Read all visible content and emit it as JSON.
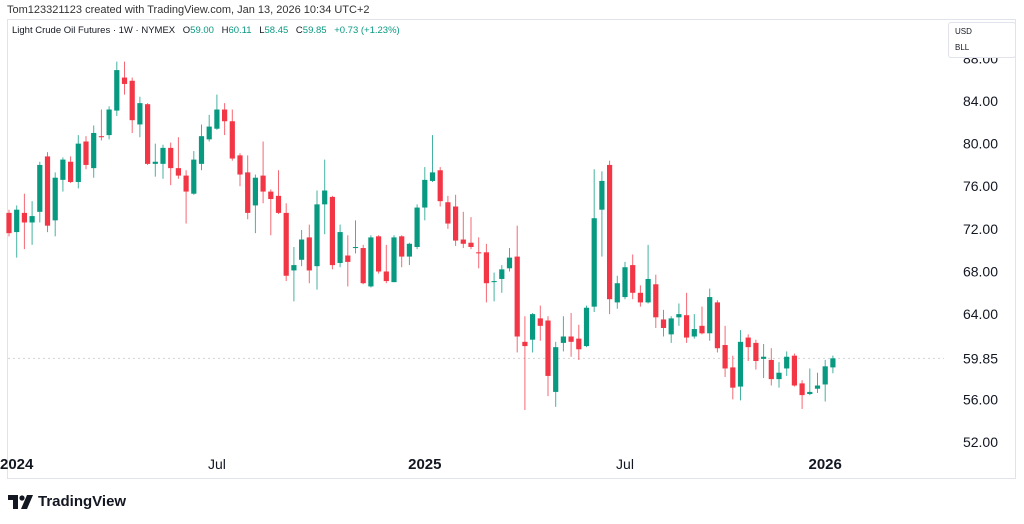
{
  "credit": "Tom123321123 created with TradingView.com, Jan 13, 2026 10:34 UTC+2",
  "legend": {
    "symbol": "Light Crude Oil Futures · 1W · NYMEX",
    "o_label": "O",
    "o": "59.00",
    "h_label": "H",
    "h": "60.11",
    "l_label": "L",
    "l": "58.45",
    "c_label": "C",
    "c": "59.85",
    "change": "+0.73 (+1.23%)"
  },
  "unit_box": {
    "currency": "USD",
    "unit": "BLL"
  },
  "logo_text": "TradingView",
  "colors": {
    "up": "#089981",
    "down": "#F23645",
    "text": "#131722"
  },
  "chart_data": {
    "type": "candlestick",
    "title": "Light Crude Oil Futures · 1W · NYMEX",
    "interval": "1W",
    "y_ticks": [
      "88.00",
      "84.00",
      "80.00",
      "76.00",
      "72.00",
      "68.00",
      "64.00",
      "56.00",
      "52.00"
    ],
    "last_price_label": "59.85",
    "ylim": [
      50.5,
      89
    ],
    "grid": false,
    "x_ticks": [
      {
        "label": "2024",
        "date": "2024-01-01",
        "bold": true
      },
      {
        "label": "Jul",
        "date": "2024-07-01",
        "bold": false
      },
      {
        "label": "2025",
        "date": "2025-01-06",
        "bold": true
      },
      {
        "label": "Jul",
        "date": "2025-07-07",
        "bold": false
      },
      {
        "label": "2026",
        "date": "2026-01-05",
        "bold": true
      }
    ],
    "columns": [
      "date",
      "open",
      "high",
      "low",
      "close"
    ],
    "candles": [
      [
        "2023-12-25",
        73.5,
        73.8,
        71.3,
        71.6
      ],
      [
        "2024-01-01",
        71.7,
        74.2,
        69.3,
        73.8
      ],
      [
        "2024-01-08",
        73.5,
        75.3,
        70.1,
        72.6
      ],
      [
        "2024-01-15",
        72.6,
        74.6,
        70.5,
        73.2
      ],
      [
        "2024-01-22",
        73.6,
        78.3,
        72.6,
        78.0
      ],
      [
        "2024-01-29",
        78.8,
        79.2,
        71.7,
        72.3
      ],
      [
        "2024-02-05",
        72.8,
        77.3,
        71.3,
        76.8
      ],
      [
        "2024-02-12",
        76.6,
        78.7,
        75.5,
        78.5
      ],
      [
        "2024-02-19",
        78.3,
        78.8,
        76.3,
        76.4
      ],
      [
        "2024-02-26",
        76.4,
        80.8,
        75.8,
        80.0
      ],
      [
        "2024-03-04",
        80.2,
        80.7,
        77.6,
        78.0
      ],
      [
        "2024-03-11",
        77.7,
        81.7,
        76.8,
        81.0
      ],
      [
        "2024-03-18",
        80.7,
        83.2,
        80.3,
        80.6
      ],
      [
        "2024-03-25",
        80.8,
        83.5,
        80.4,
        83.2
      ],
      [
        "2024-04-01",
        83.1,
        87.7,
        82.6,
        86.9
      ],
      [
        "2024-04-08",
        86.2,
        87.7,
        84.6,
        85.6
      ],
      [
        "2024-04-15",
        85.9,
        86.2,
        81.0,
        82.2
      ],
      [
        "2024-04-22",
        81.8,
        84.4,
        80.6,
        83.8
      ],
      [
        "2024-04-29",
        83.7,
        83.8,
        78.0,
        78.1
      ],
      [
        "2024-05-06",
        78.1,
        80.0,
        76.9,
        78.3
      ],
      [
        "2024-05-13",
        78.1,
        79.9,
        76.7,
        79.6
      ],
      [
        "2024-05-20",
        79.6,
        80.1,
        76.1,
        77.7
      ],
      [
        "2024-05-27",
        77.7,
        80.6,
        76.7,
        77.0
      ],
      [
        "2024-06-03",
        77.0,
        77.5,
        72.5,
        75.5
      ],
      [
        "2024-06-10",
        75.3,
        79.3,
        75.2,
        78.5
      ],
      [
        "2024-06-17",
        78.1,
        81.8,
        77.5,
        80.7
      ],
      [
        "2024-06-24",
        80.4,
        82.7,
        80.2,
        81.6
      ],
      [
        "2024-07-01",
        81.4,
        84.6,
        81.3,
        83.2
      ],
      [
        "2024-07-08",
        83.2,
        83.8,
        80.8,
        82.1
      ],
      [
        "2024-07-15",
        82.1,
        83.2,
        78.4,
        78.6
      ],
      [
        "2024-07-22",
        78.9,
        79.1,
        76.0,
        77.1
      ],
      [
        "2024-07-29",
        77.3,
        78.9,
        72.9,
        73.5
      ],
      [
        "2024-08-05",
        74.2,
        77.1,
        71.6,
        76.8
      ],
      [
        "2024-08-12",
        77.0,
        80.2,
        74.4,
        75.5
      ],
      [
        "2024-08-19",
        75.5,
        75.7,
        71.4,
        74.8
      ],
      [
        "2024-08-26",
        75.1,
        77.5,
        73.4,
        73.5
      ],
      [
        "2024-09-02",
        73.5,
        74.4,
        67.1,
        67.6
      ],
      [
        "2024-09-09",
        68.1,
        70.3,
        65.2,
        68.6
      ],
      [
        "2024-09-16",
        69.1,
        71.9,
        68.5,
        71.0
      ],
      [
        "2024-09-23",
        71.2,
        72.4,
        66.9,
        68.1
      ],
      [
        "2024-09-30",
        68.5,
        75.6,
        66.3,
        74.3
      ],
      [
        "2024-10-07",
        74.3,
        78.5,
        71.5,
        75.6
      ],
      [
        "2024-10-14",
        75.0,
        75.1,
        68.2,
        68.6
      ],
      [
        "2024-10-21",
        68.8,
        72.4,
        68.4,
        71.7
      ],
      [
        "2024-10-28",
        69.5,
        71.4,
        66.6,
        68.9
      ],
      [
        "2024-11-04",
        70.2,
        72.8,
        69.7,
        70.3
      ],
      [
        "2024-11-11",
        70.2,
        70.5,
        66.8,
        66.9
      ],
      [
        "2024-11-18",
        66.6,
        71.4,
        66.5,
        71.2
      ],
      [
        "2024-11-25",
        71.3,
        71.4,
        67.8,
        68.0
      ],
      [
        "2024-12-02",
        68.0,
        70.5,
        66.9,
        67.1
      ],
      [
        "2024-12-09",
        67.0,
        71.4,
        67.0,
        71.2
      ],
      [
        "2024-12-16",
        71.3,
        71.4,
        68.4,
        69.4
      ],
      [
        "2024-12-23",
        69.4,
        70.7,
        68.6,
        70.6
      ],
      [
        "2024-12-30",
        70.3,
        74.3,
        70.1,
        74.0
      ],
      [
        "2025-01-06",
        74.0,
        77.8,
        72.8,
        76.6
      ],
      [
        "2025-01-13",
        76.5,
        80.8,
        76.4,
        77.3
      ],
      [
        "2025-01-20",
        77.5,
        77.8,
        74.1,
        74.6
      ],
      [
        "2025-01-27",
        74.5,
        75.1,
        72.0,
        72.5
      ],
      [
        "2025-02-03",
        74.1,
        75.2,
        70.4,
        70.9
      ],
      [
        "2025-02-10",
        71.0,
        73.6,
        70.2,
        70.6
      ],
      [
        "2025-02-17",
        70.7,
        73.1,
        70.1,
        70.3
      ],
      [
        "2025-02-24",
        69.8,
        71.2,
        68.3,
        69.7
      ],
      [
        "2025-03-03",
        69.8,
        70.6,
        65.1,
        66.9
      ],
      [
        "2025-03-10",
        67.0,
        67.9,
        65.2,
        67.1
      ],
      [
        "2025-03-17",
        67.3,
        68.6,
        66.0,
        68.2
      ],
      [
        "2025-03-24",
        68.3,
        70.2,
        68.0,
        69.3
      ],
      [
        "2025-03-31",
        69.4,
        72.3,
        60.4,
        61.9
      ],
      [
        "2025-04-07",
        61.4,
        63.8,
        55.0,
        61.0
      ],
      [
        "2025-04-14",
        61.6,
        64.1,
        60.4,
        64.0
      ],
      [
        "2025-04-21",
        63.6,
        64.8,
        61.5,
        62.9
      ],
      [
        "2025-04-28",
        63.4,
        63.8,
        56.3,
        58.2
      ],
      [
        "2025-05-05",
        56.7,
        61.4,
        55.3,
        60.9
      ],
      [
        "2025-05-12",
        61.3,
        63.8,
        60.5,
        61.9
      ],
      [
        "2025-05-19",
        61.9,
        64.1,
        60.0,
        61.4
      ],
      [
        "2025-05-26",
        61.7,
        63.0,
        59.7,
        60.7
      ],
      [
        "2025-06-02",
        61.0,
        64.8,
        60.9,
        64.6
      ],
      [
        "2025-06-09",
        64.7,
        77.6,
        64.2,
        73.0
      ],
      [
        "2025-06-16",
        73.8,
        77.4,
        69.4,
        76.5
      ],
      [
        "2025-06-23",
        78.0,
        78.4,
        64.0,
        65.4
      ],
      [
        "2025-06-30",
        65.1,
        67.6,
        64.5,
        66.9
      ],
      [
        "2025-07-07",
        65.6,
        68.9,
        65.4,
        68.4
      ],
      [
        "2025-07-14",
        68.6,
        69.6,
        65.4,
        66.0
      ],
      [
        "2025-07-21",
        66.0,
        66.7,
        64.7,
        65.1
      ],
      [
        "2025-07-28",
        65.1,
        70.5,
        65.0,
        67.3
      ],
      [
        "2025-08-04",
        66.8,
        67.7,
        62.7,
        63.7
      ],
      [
        "2025-08-11",
        63.5,
        64.4,
        61.9,
        62.7
      ],
      [
        "2025-08-18",
        62.1,
        63.8,
        61.3,
        63.6
      ],
      [
        "2025-08-25",
        63.7,
        65.0,
        62.9,
        64.0
      ],
      [
        "2025-09-01",
        63.9,
        66.0,
        61.3,
        61.8
      ],
      [
        "2025-09-08",
        61.9,
        64.0,
        61.7,
        62.6
      ],
      [
        "2025-09-15",
        62.9,
        64.7,
        62.1,
        62.2
      ],
      [
        "2025-09-22",
        62.2,
        66.4,
        61.5,
        65.6
      ],
      [
        "2025-09-29",
        65.1,
        65.3,
        60.4,
        60.8
      ],
      [
        "2025-10-06",
        61.1,
        62.9,
        58.1,
        58.9
      ],
      [
        "2025-10-13",
        59.0,
        60.1,
        56.0,
        57.1
      ],
      [
        "2025-10-20",
        57.2,
        62.5,
        55.9,
        61.4
      ],
      [
        "2025-10-27",
        61.8,
        62.1,
        59.6,
        60.9
      ],
      [
        "2025-11-03",
        61.3,
        61.6,
        58.8,
        59.6
      ],
      [
        "2025-11-10",
        59.8,
        61.2,
        58.0,
        60.0
      ],
      [
        "2025-11-17",
        59.7,
        60.8,
        57.3,
        57.9
      ],
      [
        "2025-11-24",
        57.9,
        59.5,
        57.1,
        58.5
      ],
      [
        "2025-12-01",
        58.9,
        60.5,
        58.2,
        60.0
      ],
      [
        "2025-12-08",
        60.1,
        60.3,
        57.2,
        57.3
      ],
      [
        "2025-12-15",
        57.5,
        57.8,
        55.1,
        56.4
      ],
      [
        "2025-12-22",
        56.5,
        58.9,
        56.4,
        56.7
      ],
      [
        "2025-12-29",
        57.0,
        58.5,
        56.6,
        57.3
      ],
      [
        "2026-01-05",
        57.4,
        59.7,
        55.8,
        59.1
      ],
      [
        "2026-01-12",
        59.0,
        60.11,
        58.45,
        59.85
      ]
    ]
  }
}
